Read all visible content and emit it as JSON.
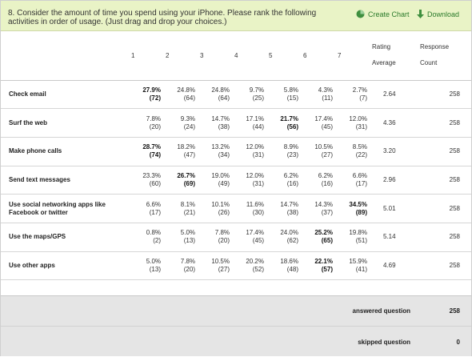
{
  "question_text": "8. Consider the amount of time you spend using your iPhone. Please rank the following activities in order of usage. (Just drag and drop your choices.)",
  "actions": {
    "create_chart": "Create Chart",
    "download": "Download"
  },
  "columns": {
    "ranks": [
      "1",
      "2",
      "3",
      "4",
      "5",
      "6",
      "7"
    ],
    "rating_average": [
      "Rating",
      "Average"
    ],
    "response_count": [
      "Response",
      "Count"
    ]
  },
  "rows": [
    {
      "label": [
        "Check email"
      ],
      "cells": [
        {
          "pct": "27.9%",
          "n": "(72)",
          "bold": true
        },
        {
          "pct": "24.8%",
          "n": "(64)",
          "bold": false
        },
        {
          "pct": "24.8%",
          "n": "(64)",
          "bold": false
        },
        {
          "pct": "9.7%",
          "n": "(25)",
          "bold": false
        },
        {
          "pct": "5.8%",
          "n": "(15)",
          "bold": false
        },
        {
          "pct": "4.3%",
          "n": "(11)",
          "bold": false
        },
        {
          "pct": "2.7%",
          "n": "(7)",
          "bold": false
        }
      ],
      "avg": "2.64",
      "count": "258"
    },
    {
      "label": [
        "Surf the web"
      ],
      "cells": [
        {
          "pct": "7.8%",
          "n": "(20)",
          "bold": false
        },
        {
          "pct": "9.3%",
          "n": "(24)",
          "bold": false
        },
        {
          "pct": "14.7%",
          "n": "(38)",
          "bold": false
        },
        {
          "pct": "17.1%",
          "n": "(44)",
          "bold": false
        },
        {
          "pct": "21.7%",
          "n": "(56)",
          "bold": true
        },
        {
          "pct": "17.4%",
          "n": "(45)",
          "bold": false
        },
        {
          "pct": "12.0%",
          "n": "(31)",
          "bold": false
        }
      ],
      "avg": "4.36",
      "count": "258"
    },
    {
      "label": [
        "Make phone calls"
      ],
      "cells": [
        {
          "pct": "28.7%",
          "n": "(74)",
          "bold": true
        },
        {
          "pct": "18.2%",
          "n": "(47)",
          "bold": false
        },
        {
          "pct": "13.2%",
          "n": "(34)",
          "bold": false
        },
        {
          "pct": "12.0%",
          "n": "(31)",
          "bold": false
        },
        {
          "pct": "8.9%",
          "n": "(23)",
          "bold": false
        },
        {
          "pct": "10.5%",
          "n": "(27)",
          "bold": false
        },
        {
          "pct": "8.5%",
          "n": "(22)",
          "bold": false
        }
      ],
      "avg": "3.20",
      "count": "258"
    },
    {
      "label": [
        "Send text messages"
      ],
      "cells": [
        {
          "pct": "23.3%",
          "n": "(60)",
          "bold": false
        },
        {
          "pct": "26.7%",
          "n": "(69)",
          "bold": true
        },
        {
          "pct": "19.0%",
          "n": "(49)",
          "bold": false
        },
        {
          "pct": "12.0%",
          "n": "(31)",
          "bold": false
        },
        {
          "pct": "6.2%",
          "n": "(16)",
          "bold": false
        },
        {
          "pct": "6.2%",
          "n": "(16)",
          "bold": false
        },
        {
          "pct": "6.6%",
          "n": "(17)",
          "bold": false
        }
      ],
      "avg": "2.96",
      "count": "258"
    },
    {
      "label": [
        "Use social networking apps like",
        "Facebook or twitter"
      ],
      "cells": [
        {
          "pct": "6.6%",
          "n": "(17)",
          "bold": false
        },
        {
          "pct": "8.1%",
          "n": "(21)",
          "bold": false
        },
        {
          "pct": "10.1%",
          "n": "(26)",
          "bold": false
        },
        {
          "pct": "11.6%",
          "n": "(30)",
          "bold": false
        },
        {
          "pct": "14.7%",
          "n": "(38)",
          "bold": false
        },
        {
          "pct": "14.3%",
          "n": "(37)",
          "bold": false
        },
        {
          "pct": "34.5%",
          "n": "(89)",
          "bold": true
        }
      ],
      "avg": "5.01",
      "count": "258"
    },
    {
      "label": [
        "Use the maps/GPS"
      ],
      "cells": [
        {
          "pct": "0.8%",
          "n": "(2)",
          "bold": false
        },
        {
          "pct": "5.0%",
          "n": "(13)",
          "bold": false
        },
        {
          "pct": "7.8%",
          "n": "(20)",
          "bold": false
        },
        {
          "pct": "17.4%",
          "n": "(45)",
          "bold": false
        },
        {
          "pct": "24.0%",
          "n": "(62)",
          "bold": false
        },
        {
          "pct": "25.2%",
          "n": "(65)",
          "bold": true
        },
        {
          "pct": "19.8%",
          "n": "(51)",
          "bold": false
        }
      ],
      "avg": "5.14",
      "count": "258"
    },
    {
      "label": [
        "Use other apps"
      ],
      "cells": [
        {
          "pct": "5.0%",
          "n": "(13)",
          "bold": false
        },
        {
          "pct": "7.8%",
          "n": "(20)",
          "bold": false
        },
        {
          "pct": "10.5%",
          "n": "(27)",
          "bold": false
        },
        {
          "pct": "20.2%",
          "n": "(52)",
          "bold": false
        },
        {
          "pct": "18.6%",
          "n": "(48)",
          "bold": false
        },
        {
          "pct": "22.1%",
          "n": "(57)",
          "bold": true
        },
        {
          "pct": "15.9%",
          "n": "(41)",
          "bold": false
        }
      ],
      "avg": "4.69",
      "count": "258"
    }
  ],
  "footer": {
    "answered_label": "answered question",
    "answered_value": "258",
    "skipped_label": "skipped question",
    "skipped_value": "0"
  },
  "colors": {
    "header_bg": "#e9f3c6",
    "link": "#2a7a2a",
    "footer_bg": "#e5e5e5"
  },
  "icons": {
    "create_chart": "pie-chart-icon",
    "download": "download-arrow-icon"
  }
}
